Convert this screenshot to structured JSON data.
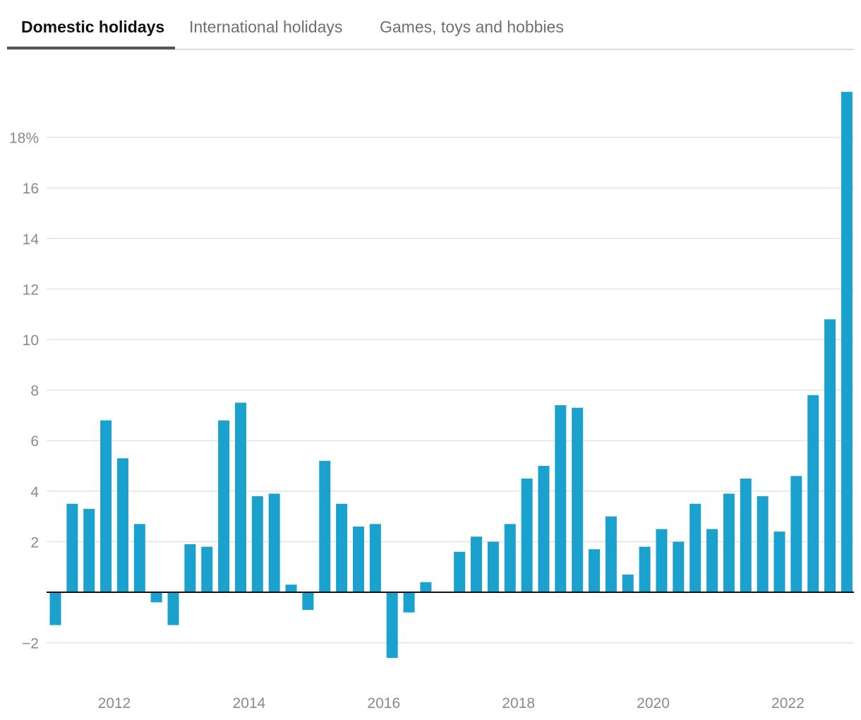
{
  "tabs": [
    {
      "label": "Domestic holidays",
      "active": true
    },
    {
      "label": "International holidays",
      "active": false
    },
    {
      "label": "Games, toys and hobbies",
      "active": false
    }
  ],
  "colors": {
    "bar": "#1aa1cd",
    "grid": "#e3e3e3",
    "zero_line": "#111111",
    "tick_text": "#8a8a8a"
  },
  "chart_data": {
    "type": "bar",
    "title": "",
    "xlabel": "",
    "ylabel": "",
    "x_start": "2011 Q2",
    "frequency": "quarterly",
    "ylim": [
      -3,
      20
    ],
    "y_ticks": [
      {
        "value": 18,
        "label": "18%"
      },
      {
        "value": 16,
        "label": "16"
      },
      {
        "value": 14,
        "label": "14"
      },
      {
        "value": 12,
        "label": "12"
      },
      {
        "value": 10,
        "label": "10"
      },
      {
        "value": 8,
        "label": "8"
      },
      {
        "value": 6,
        "label": "6"
      },
      {
        "value": 4,
        "label": "4"
      },
      {
        "value": 2,
        "label": "2"
      },
      {
        "value": -2,
        "label": "−2"
      }
    ],
    "x_ticks": [
      {
        "label": "2012",
        "index": 3.5
      },
      {
        "label": "2014",
        "index": 11.5
      },
      {
        "label": "2016",
        "index": 19.5
      },
      {
        "label": "2018",
        "index": 27.5
      },
      {
        "label": "2020",
        "index": 35.5
      },
      {
        "label": "2022",
        "index": 43.5
      }
    ],
    "values": [
      -1.3,
      3.5,
      3.3,
      6.8,
      5.3,
      2.7,
      -0.4,
      -1.3,
      1.9,
      1.8,
      6.8,
      7.5,
      3.8,
      3.9,
      0.3,
      -0.7,
      5.2,
      3.5,
      2.6,
      2.7,
      -2.6,
      -0.8,
      0.4,
      0,
      1.6,
      2.2,
      2.0,
      2.7,
      4.5,
      5.0,
      7.4,
      7.3,
      1.7,
      3.0,
      0.7,
      1.8,
      2.5,
      2.0,
      3.5,
      2.5,
      3.9,
      4.5,
      3.8,
      2.4,
      4.6,
      7.8,
      10.8,
      19.8
    ],
    "grid": true,
    "legend": "none"
  }
}
